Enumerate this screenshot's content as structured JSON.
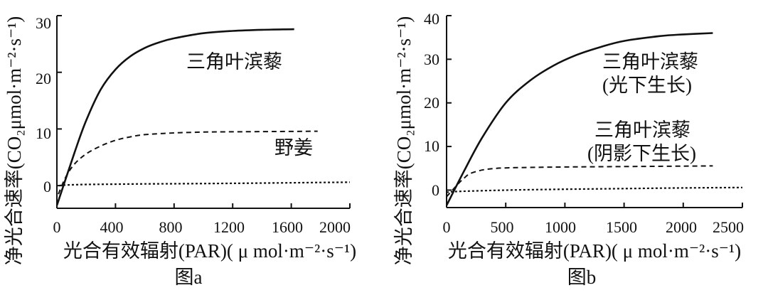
{
  "chart_data": [
    {
      "type": "line",
      "caption": "图a",
      "xlabel": "光合有效辐射(PAR)( μ mol·m⁻²·s⁻¹)",
      "ylabel": "净光合速率(CO₂μmol·m⁻²·s⁻¹)",
      "xlim": [
        0,
        2000
      ],
      "ylim": [
        -4,
        30
      ],
      "xticks": [
        "0",
        "400",
        "800",
        "1200",
        "1600",
        "2000"
      ],
      "yticks": [
        "0",
        "10",
        "20",
        "30"
      ],
      "series": [
        {
          "name": "三角叶滨藜",
          "style": "solid",
          "label": "三角叶滨藜",
          "x": [
            0,
            120,
            200,
            300,
            400,
            500,
            600,
            700,
            800,
            1000,
            1200,
            1400,
            1620
          ],
          "y": [
            -3.5,
            5.8,
            11.5,
            17.0,
            20.5,
            22.8,
            24.3,
            25.3,
            26.0,
            26.9,
            27.3,
            27.5,
            27.6
          ]
        },
        {
          "name": "野姜",
          "style": "dashed",
          "label": "野姜",
          "x": [
            10,
            60,
            120,
            200,
            300,
            400,
            500,
            600,
            800,
            1000,
            1200,
            1500,
            1780
          ],
          "y": [
            -1.5,
            1.5,
            3.8,
            5.6,
            7.0,
            8.0,
            8.6,
            9.0,
            9.3,
            9.45,
            9.5,
            9.55,
            9.6
          ]
        },
        {
          "name": "baseline",
          "style": "dotted",
          "x": [
            15,
            60,
            200,
            600,
            1200,
            1800,
            2000
          ],
          "y": [
            0.0,
            0.1,
            0.2,
            0.3,
            0.4,
            0.55,
            0.6
          ]
        }
      ]
    },
    {
      "type": "line",
      "caption": "图b",
      "xlabel": "光合有效辐射(PAR)( μ mol·m⁻²·s⁻¹)",
      "ylabel": "净光合速率(CO₂μmol·m⁻²·s⁻¹)",
      "xlim": [
        0,
        2500
      ],
      "ylim": [
        -4,
        40
      ],
      "xticks": [
        "0",
        "500",
        "1000",
        "1500",
        "2000",
        "2500"
      ],
      "yticks": [
        "0",
        "10",
        "20",
        "30",
        "40"
      ],
      "series": [
        {
          "name": "三角叶滨藜(光下生长)",
          "style": "solid",
          "label": [
            "三角叶滨藜",
            "(光下生长)"
          ],
          "x": [
            0,
            150,
            300,
            500,
            700,
            900,
            1100,
            1300,
            1500,
            1800,
            2000,
            2250
          ],
          "y": [
            -3.5,
            4.5,
            12.0,
            20.0,
            25.0,
            28.5,
            31.0,
            32.8,
            34.2,
            35.3,
            35.7,
            36.0
          ]
        },
        {
          "name": "三角叶滨藜(阴影下生长)",
          "style": "dashed",
          "label": [
            "三角叶滨藜",
            "(阴影下生长)"
          ],
          "x": [
            0,
            100,
            150,
            200,
            300,
            400,
            500,
            700,
            1000,
            1500,
            2000,
            2250
          ],
          "y": [
            -1.5,
            1.5,
            2.8,
            3.8,
            4.6,
            4.95,
            5.1,
            5.2,
            5.3,
            5.4,
            5.5,
            5.55
          ]
        },
        {
          "name": "baseline",
          "style": "dotted",
          "x": [
            0,
            100,
            500,
            1000,
            1500,
            2000,
            2500
          ],
          "y": [
            -0.5,
            -0.3,
            0.0,
            0.2,
            0.35,
            0.5,
            0.6
          ]
        }
      ]
    }
  ]
}
